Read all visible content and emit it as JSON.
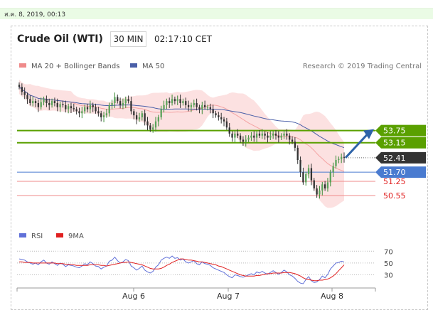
{
  "timestamp": "ส.ค. 8, 2019, 00:13",
  "header": {
    "title": "Crude Oil (WTI)",
    "interval": "30 MIN",
    "time": "02:17:10 CET"
  },
  "legend": {
    "ma20": "MA 20 + Bollinger Bands",
    "ma50": "MA 50",
    "credit": "Research © 2019 Trading Central"
  },
  "colors": {
    "up": "#3a8a34",
    "down": "#333333",
    "resistance": "#5aa000",
    "support": "#4a7bd0",
    "support_minor": "#ef8a8a",
    "pivot": "#333333",
    "bands": "#fcdcdc",
    "ma50": "#4a5fa8",
    "rsi": "#6070d8",
    "rsi_ma": "#e02020",
    "arrow": "#2e63a8"
  },
  "chart_data": [
    {
      "type": "candlestick",
      "title": "Crude Oil (WTI) 30 MIN",
      "x_labels": [
        "Aug 6",
        "Aug 7",
        "Aug 8"
      ],
      "ylim": [
        49.5,
        56.5
      ],
      "close": [
        55.9,
        55.65,
        55.5,
        55.3,
        55.1,
        55.2,
        55.1,
        54.9,
        55.15,
        55.3,
        55.1,
        55.0,
        55.2,
        55.1,
        54.9,
        55.05,
        55.0,
        54.8,
        54.95,
        54.85,
        54.8,
        54.7,
        54.6,
        54.7,
        54.9,
        54.8,
        55.0,
        54.9,
        54.7,
        54.6,
        54.4,
        54.5,
        54.6,
        55.0,
        55.1,
        55.4,
        55.2,
        55.0,
        55.1,
        55.3,
        55.2,
        54.7,
        54.5,
        54.3,
        54.4,
        54.6,
        54.2,
        54.0,
        53.8,
        53.9,
        54.2,
        54.4,
        54.8,
        55.0,
        55.2,
        55.1,
        55.3,
        55.2,
        55.3,
        55.1,
        55.2,
        55.0,
        54.9,
        55.0,
        55.1,
        54.9,
        54.8,
        55.0,
        54.9,
        54.9,
        54.8,
        54.6,
        54.5,
        54.4,
        54.3,
        54.2,
        53.9,
        53.6,
        53.4,
        53.6,
        53.5,
        53.3,
        53.2,
        53.3,
        53.4,
        53.5,
        53.4,
        53.6,
        53.5,
        53.6,
        53.5,
        53.4,
        53.5,
        53.6,
        53.5,
        53.4,
        53.5,
        53.6,
        53.5,
        53.3,
        53.2,
        52.9,
        52.3,
        51.7,
        51.2,
        51.6,
        51.9,
        51.3,
        50.9,
        50.6,
        50.8,
        51.1,
        50.9,
        51.2,
        51.7,
        52.0,
        52.3,
        52.35,
        52.45,
        52.41
      ],
      "ma20_label": "MA 20 + Bollinger Bands",
      "ma50_label": "MA 50",
      "levels": [
        {
          "value": 53.75,
          "label": "53.75",
          "kind": "resistance"
        },
        {
          "value": 53.15,
          "label": "53.15",
          "kind": "resistance"
        },
        {
          "value": 52.41,
          "label": "52.41",
          "kind": "last"
        },
        {
          "value": 51.7,
          "label": "51.70",
          "kind": "support"
        },
        {
          "value": 51.25,
          "label": "51.25",
          "kind": "support_minor"
        },
        {
          "value": 50.55,
          "label": "50.55",
          "kind": "support_minor"
        }
      ],
      "forecast": {
        "from": 52.41,
        "to": 53.75,
        "direction": "up"
      }
    },
    {
      "type": "line",
      "series": [
        {
          "name": "RSI"
        },
        {
          "name": "9MA"
        }
      ],
      "ylim": [
        15,
        80
      ],
      "y_ticks": [
        "70",
        "50",
        "30"
      ],
      "rsi": [
        57,
        56,
        55,
        52,
        50,
        48,
        50,
        47,
        52,
        55,
        50,
        48,
        52,
        49,
        46,
        50,
        48,
        44,
        47,
        46,
        45,
        43,
        42,
        45,
        49,
        47,
        52,
        49,
        45,
        44,
        40,
        43,
        45,
        53,
        55,
        60,
        54,
        50,
        52,
        56,
        54,
        45,
        42,
        38,
        41,
        45,
        38,
        35,
        33,
        36,
        43,
        47,
        55,
        58,
        60,
        58,
        62,
        58,
        59,
        55,
        57,
        52,
        50,
        52,
        54,
        49,
        47,
        52,
        49,
        48,
        46,
        42,
        40,
        38,
        36,
        34,
        30,
        27,
        25,
        30,
        29,
        27,
        26,
        28,
        30,
        32,
        30,
        35,
        33,
        36,
        33,
        31,
        34,
        37,
        34,
        31,
        34,
        38,
        35,
        30,
        28,
        24,
        19,
        16,
        15,
        22,
        27,
        20,
        17,
        18,
        22,
        28,
        25,
        31,
        40,
        45,
        50,
        51,
        53,
        52
      ],
      "rsi_ma": [
        52,
        52,
        51,
        51,
        51,
        50,
        50,
        50,
        50,
        50,
        50,
        50,
        50,
        50,
        49,
        49,
        49,
        48,
        48,
        47,
        47,
        46,
        46,
        46,
        46,
        46,
        47,
        47,
        47,
        47,
        46,
        46,
        45,
        46,
        47,
        48,
        49,
        50,
        51,
        51,
        52,
        51,
        50,
        49,
        48,
        47,
        45,
        43,
        41,
        40,
        40,
        40,
        41,
        43,
        46,
        48,
        51,
        53,
        55,
        57,
        57,
        56,
        55,
        55,
        54,
        53,
        52,
        52,
        51,
        50,
        49,
        48,
        47,
        45,
        44,
        42,
        40,
        38,
        36,
        34,
        32,
        30,
        29,
        28,
        28,
        28,
        28,
        29,
        29,
        30,
        31,
        32,
        32,
        33,
        33,
        33,
        33,
        34,
        34,
        34,
        33,
        32,
        30,
        28,
        25,
        23,
        22,
        21,
        20,
        20,
        21,
        21,
        22,
        23,
        25,
        28,
        32,
        37,
        42,
        47
      ]
    }
  ]
}
